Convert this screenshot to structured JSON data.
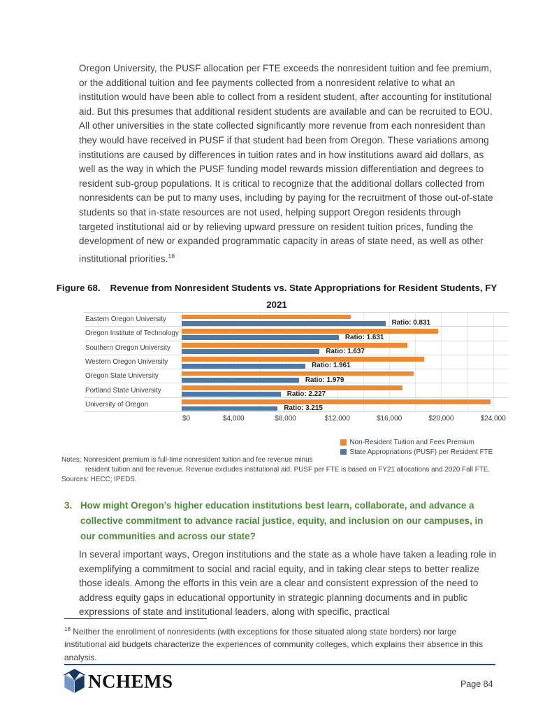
{
  "page": {
    "paragraph1": "Oregon University, the PUSF allocation per FTE exceeds the nonresident tuition and fee premium, or the additional tuition and fee payments collected from a nonresident relative to what an institution would have been able to collect from a resident student, after accounting for institutional aid. But this presumes that additional resident students are available and can be recruited to EOU. All other universities in the state collected significantly more revenue from each nonresident than they would have received in PUSF if that student had been from Oregon. These variations among institutions are caused by differences in tuition rates and in how institutions award aid dollars, as well as the way in which the PUSF funding model rewards mission differentiation and degrees to resident sub-group populations. It is critical to recognize that the additional dollars collected from nonresidents can be put to many uses, including by paying for the recruitment of those out-of-state students so that in-state resources are not used, helping support Oregon residents through targeted institutional aid or by relieving upward pressure on resident tuition prices, funding the development of new or expanded programmatic capacity in areas of state need, as well as other institutional priorities.",
    "footnote_ref": "18",
    "question_number": "3.",
    "question_text": "How might Oregon’s higher education institutions best learn, collaborate, and advance a collective commitment to advance racial justice, equity, and inclusion on our campuses, in our communities and across our state?",
    "paragraph2": "In several important ways, Oregon institutions and the state as a whole have taken a leading role in exemplifying a commitment to social and racial equity, and in taking clear steps to better realize those ideals. Among the efforts in this vein are a clear and consistent expression of the need to address equity gaps in educational opportunity in strategic planning documents and in public expressions of state and institutional leaders, along with specific, practical",
    "footnote_text": "Neither the enrollment of nonresidents (with exceptions for those situated along state borders) nor large institutional aid budgets characterize the experiences of community colleges, which explains their absence in this analysis.",
    "logo_text": "NCHEMS",
    "page_number": "Page 84",
    "colors": {
      "heading_green": "#4f8a3c",
      "footer_rule_navy": "#1f4e79",
      "logo_navy": "#17375e",
      "logo_light_blue": "#7396c8"
    }
  },
  "figure": {
    "caption_prefix": "Figure 68.",
    "caption_title": "Revenue from Nonresident Students vs. State Appropriations for Resident Students, FY",
    "caption_line2": "2021",
    "notes": [
      "Notes: Nonresident premium is full-time nonresident tuition and fee revenue minus",
      "resident tuition and fee revenue. Revenue excludes institutional aid. PUSF per FTE is based on FY21 allocations and 2020 Fall FTE.",
      "Sources: HECC; IPEDS."
    ]
  },
  "chart_data": {
    "type": "bar",
    "orientation": "horizontal",
    "title": "Revenue from Nonresident Students vs. State Appropriations for Resident Students, FY 2021",
    "categories": [
      "Eastern Oregon University",
      "Oregon Institute of Technology",
      "Southern Oregon University",
      "Western Oregon University",
      "Oregon State University",
      "Portland State University",
      "University of Oregon"
    ],
    "series": [
      {
        "name": "Non-Resident Tuition and Fees Premium",
        "color": "#ee8a33",
        "values": [
          13050,
          19750,
          17400,
          18700,
          17900,
          17000,
          23800
        ]
      },
      {
        "name": "State Appropriations (PUSF) per Resident FTE",
        "color": "#4e79a7",
        "values": [
          15700,
          12110,
          10630,
          9540,
          9040,
          7630,
          7400
        ]
      }
    ],
    "ratio_labels": [
      "Ratio: 0.831",
      "Ratio: 1.631",
      "Ratio: 1.637",
      "Ratio: 1.961",
      "Ratio: 1.979",
      "Ratio: 2.227",
      "Ratio: 3.215"
    ],
    "ratios": [
      0.831,
      1.631,
      1.637,
      1.961,
      1.979,
      2.227,
      3.215
    ],
    "x_ticks": [
      "$0",
      "$4,000",
      "$8,000",
      "$12,000",
      "$16,000",
      "$20,000",
      "$24,000"
    ],
    "x_tick_values": [
      0,
      4000,
      8000,
      12000,
      16000,
      20000,
      24000
    ],
    "xlim": [
      0,
      24000
    ],
    "xmax_render": 25200,
    "gridline_step": 2000,
    "gridline_max": 24000,
    "grid": "on",
    "legend_position": "bottom-right"
  }
}
